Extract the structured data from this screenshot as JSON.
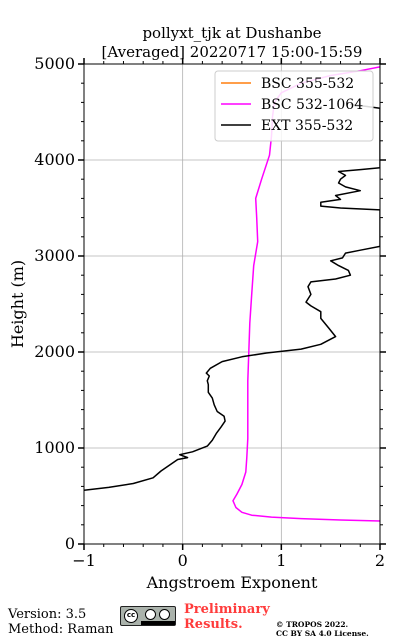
{
  "chart_data": {
    "type": "line",
    "title_line1": "pollyxt_tjk at Dushanbe",
    "title_line2": "[Averaged] 20220717 15:00-15:59",
    "xlabel": "Angstroem Exponent",
    "ylabel": "Height (m)",
    "xlim": [
      -1,
      2
    ],
    "ylim": [
      0,
      5000
    ],
    "xticks": [
      -1,
      0,
      1,
      2
    ],
    "yticks": [
      0,
      1000,
      2000,
      3000,
      4000,
      5000
    ],
    "grid": true,
    "legend_position": "top-right",
    "series": [
      {
        "name": "BSC 355-532",
        "color": "#ff7f0e",
        "points": []
      },
      {
        "name": "BSC 532-1064",
        "color": "#ff00ff",
        "points": [
          [
            2.0,
            240
          ],
          [
            1.6,
            250
          ],
          [
            1.2,
            265
          ],
          [
            0.9,
            280
          ],
          [
            0.7,
            300
          ],
          [
            0.6,
            330
          ],
          [
            0.54,
            380
          ],
          [
            0.51,
            450
          ],
          [
            0.55,
            520
          ],
          [
            0.6,
            620
          ],
          [
            0.64,
            750
          ],
          [
            0.65,
            900
          ],
          [
            0.66,
            1100
          ],
          [
            0.66,
            1400
          ],
          [
            0.66,
            1700
          ],
          [
            0.67,
            2000
          ],
          [
            0.68,
            2300
          ],
          [
            0.7,
            2600
          ],
          [
            0.72,
            2900
          ],
          [
            0.76,
            3150
          ],
          [
            0.75,
            3400
          ],
          [
            0.74,
            3600
          ],
          [
            0.8,
            3800
          ],
          [
            0.88,
            4050
          ],
          [
            0.9,
            4250
          ],
          [
            0.91,
            4450
          ],
          [
            0.93,
            4600
          ],
          [
            1.0,
            4700
          ],
          [
            1.2,
            4800
          ],
          [
            1.5,
            4880
          ],
          [
            1.8,
            4930
          ],
          [
            2.0,
            4970
          ]
        ]
      },
      {
        "name": "EXT 355-532",
        "color": "#000000",
        "points": [
          [
            -1.0,
            560
          ],
          [
            -0.75,
            590
          ],
          [
            -0.5,
            630
          ],
          [
            -0.3,
            690
          ],
          [
            -0.22,
            760
          ],
          [
            -0.12,
            830
          ],
          [
            -0.05,
            880
          ],
          [
            0.05,
            900
          ],
          [
            -0.03,
            930
          ],
          [
            0.1,
            960
          ],
          [
            0.25,
            1020
          ],
          [
            0.3,
            1080
          ],
          [
            0.34,
            1150
          ],
          [
            0.39,
            1220
          ],
          [
            0.43,
            1280
          ],
          [
            0.42,
            1330
          ],
          [
            0.35,
            1380
          ],
          [
            0.32,
            1450
          ],
          [
            0.3,
            1520
          ],
          [
            0.26,
            1580
          ],
          [
            0.26,
            1660
          ],
          [
            0.25,
            1700
          ],
          [
            0.27,
            1750
          ],
          [
            0.24,
            1780
          ],
          [
            0.28,
            1830
          ],
          [
            0.4,
            1900
          ],
          [
            0.6,
            1950
          ],
          [
            0.85,
            1990
          ],
          [
            1.2,
            2030
          ],
          [
            1.4,
            2080
          ],
          [
            1.55,
            2160
          ],
          [
            1.48,
            2250
          ],
          [
            1.4,
            2350
          ],
          [
            1.4,
            2420
          ],
          [
            1.3,
            2480
          ],
          [
            1.25,
            2520
          ],
          [
            1.3,
            2600
          ],
          [
            1.27,
            2680
          ],
          [
            1.3,
            2730
          ],
          [
            1.55,
            2760
          ],
          [
            1.7,
            2800
          ],
          [
            1.68,
            2850
          ],
          [
            1.58,
            2900
          ],
          [
            1.5,
            2950
          ],
          [
            1.62,
            2980
          ],
          [
            1.65,
            3030
          ],
          [
            1.8,
            3060
          ],
          [
            2.0,
            3100
          ],
          [
            2.0,
            3480
          ],
          [
            1.6,
            3500
          ],
          [
            1.4,
            3520
          ],
          [
            1.4,
            3560
          ],
          [
            1.6,
            3590
          ],
          [
            1.55,
            3630
          ],
          [
            1.8,
            3680
          ],
          [
            1.65,
            3720
          ],
          [
            1.58,
            3760
          ],
          [
            1.6,
            3800
          ],
          [
            1.65,
            3840
          ],
          [
            1.58,
            3880
          ],
          [
            1.8,
            3900
          ],
          [
            2.0,
            3920
          ],
          [
            2.0,
            4540
          ],
          [
            1.85,
            4560
          ],
          [
            1.7,
            4580
          ]
        ]
      }
    ]
  },
  "footer": {
    "version": "Version: 3.5",
    "method": "Method: Raman",
    "preliminary_line1": "Preliminary",
    "preliminary_line2": "Results.",
    "copyright_line1": "© TROPOS 2022.",
    "copyright_line2": "CC BY SA 4.0 License."
  },
  "license_badge": {
    "icon": "cc-by-sa-icon",
    "background_color": "#aab2ab"
  }
}
